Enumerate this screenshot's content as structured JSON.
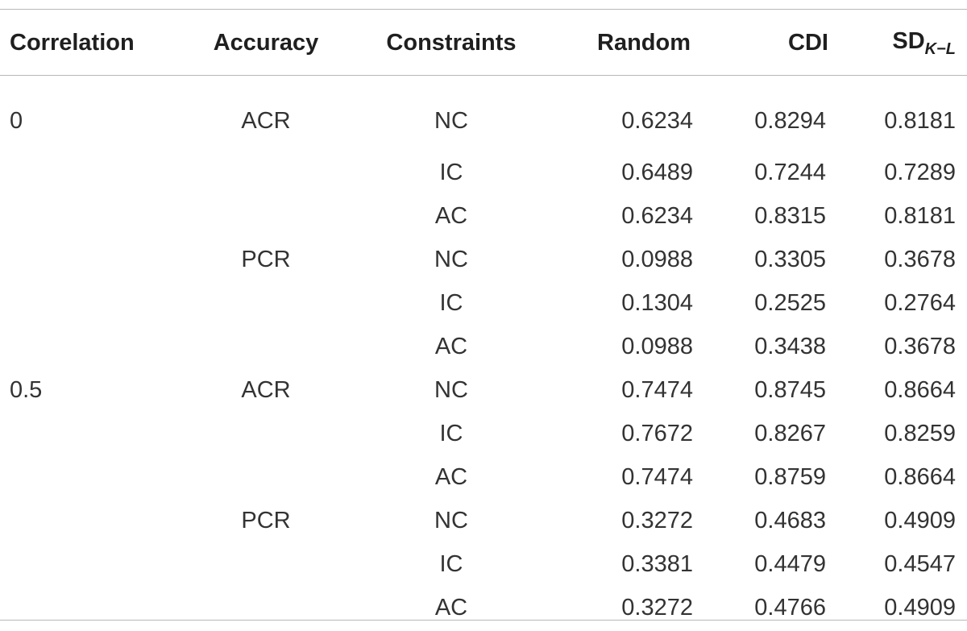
{
  "table": {
    "headers": {
      "correlation": "Correlation",
      "accuracy": "Accuracy",
      "constraints": "Constraints",
      "random": "Random",
      "cdi": "CDI",
      "sd_base": "SD",
      "sd_sub": "K−L"
    },
    "rows": [
      {
        "correlation": "0",
        "accuracy": "ACR",
        "constraints": "NC",
        "random": "0.6234",
        "cdi": "0.8294",
        "sd": "0.8181"
      },
      {
        "correlation": "",
        "accuracy": "",
        "constraints": "IC",
        "random": "0.6489",
        "cdi": "0.7244",
        "sd": "0.7289"
      },
      {
        "correlation": "",
        "accuracy": "",
        "constraints": "AC",
        "random": "0.6234",
        "cdi": "0.8315",
        "sd": "0.8181"
      },
      {
        "correlation": "",
        "accuracy": "PCR",
        "constraints": "NC",
        "random": "0.0988",
        "cdi": "0.3305",
        "sd": "0.3678"
      },
      {
        "correlation": "",
        "accuracy": "",
        "constraints": "IC",
        "random": "0.1304",
        "cdi": "0.2525",
        "sd": "0.2764"
      },
      {
        "correlation": "",
        "accuracy": "",
        "constraints": "AC",
        "random": "0.0988",
        "cdi": "0.3438",
        "sd": "0.3678"
      },
      {
        "correlation": "0.5",
        "accuracy": "ACR",
        "constraints": "NC",
        "random": "0.7474",
        "cdi": "0.8745",
        "sd": "0.8664"
      },
      {
        "correlation": "",
        "accuracy": "",
        "constraints": "IC",
        "random": "0.7672",
        "cdi": "0.8267",
        "sd": "0.8259"
      },
      {
        "correlation": "",
        "accuracy": "",
        "constraints": "AC",
        "random": "0.7474",
        "cdi": "0.8759",
        "sd": "0.8664"
      },
      {
        "correlation": "",
        "accuracy": "PCR",
        "constraints": "NC",
        "random": "0.3272",
        "cdi": "0.4683",
        "sd": "0.4909"
      },
      {
        "correlation": "",
        "accuracy": "",
        "constraints": "IC",
        "random": "0.3381",
        "cdi": "0.4479",
        "sd": "0.4547"
      },
      {
        "correlation": "",
        "accuracy": "",
        "constraints": "AC",
        "random": "0.3272",
        "cdi": "0.4766",
        "sd": "0.4909"
      }
    ]
  }
}
